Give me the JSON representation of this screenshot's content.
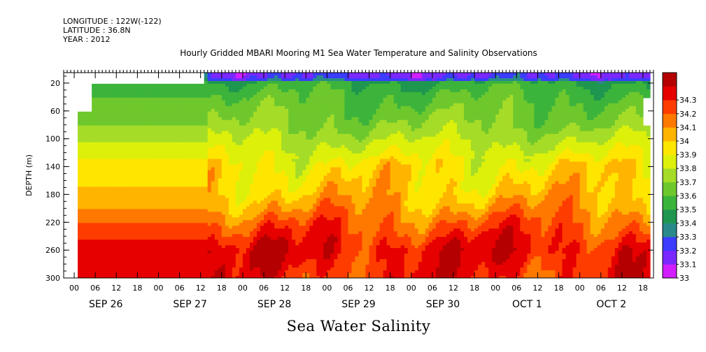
{
  "header": {
    "longitude": "LONGITUDE : 122W(-122)",
    "latitude": "LATITUDE : 36.8N",
    "year": "YEAR : 2012"
  },
  "chart_data": {
    "type": "heatmap",
    "title": "Hourly Gridded MBARI Mooring M1 Sea Water Temperature and Salinity Observations",
    "variable_title": "Sea Water Salinity",
    "ylabel": "DEPTH (m)",
    "xlabel": "",
    "y_axis": {
      "ticks": [
        20,
        60,
        100,
        140,
        180,
        220,
        260,
        300
      ],
      "range": [
        5,
        300
      ],
      "inverted": true
    },
    "x_axis": {
      "hour_ticks": [
        "00",
        "06",
        "12",
        "18",
        "00",
        "06",
        "12",
        "18",
        "00",
        "06",
        "12",
        "18",
        "00",
        "06",
        "12",
        "18",
        "00",
        "06",
        "12",
        "18",
        "00",
        "06",
        "12",
        "18",
        "00",
        "06",
        "12",
        "18"
      ],
      "date_labels": [
        "SEP 26",
        "SEP 27",
        "SEP 28",
        "SEP 29",
        "SEP 30",
        "OCT  1",
        "OCT  2"
      ],
      "range_hours": [
        -3,
        165
      ],
      "data_start_hours": 1,
      "data_end_hours": 164
    },
    "colorbar": {
      "levels": [
        33.0,
        33.1,
        33.2,
        33.3,
        33.4,
        33.5,
        33.6,
        33.7,
        33.8,
        33.9,
        34.0,
        34.1,
        34.2,
        34.3
      ],
      "labels": [
        "33",
        "33.1",
        "33.2",
        "33.3",
        "33.4",
        "33.5",
        "33.6",
        "33.7",
        "33.8",
        "33.9",
        "34",
        "34.1",
        "34.2",
        "34.3"
      ],
      "colors": [
        "#d21eff",
        "#7a28ff",
        "#3c3cff",
        "#2a8a8a",
        "#1e9650",
        "#3cb43c",
        "#6ec82d",
        "#a5dc28",
        "#dcf00a",
        "#ffe600",
        "#ffb400",
        "#ff7800",
        "#ff3c00",
        "#e60000",
        "#b40000"
      ]
    },
    "salinity_profile": [
      {
        "depth": 10,
        "salinity": 33.25
      },
      {
        "depth": 20,
        "salinity": 33.42
      },
      {
        "depth": 40,
        "salinity": 33.5
      },
      {
        "depth": 60,
        "salinity": 33.55
      },
      {
        "depth": 80,
        "salinity": 33.6
      },
      {
        "depth": 100,
        "salinity": 33.68
      },
      {
        "depth": 120,
        "salinity": 33.76
      },
      {
        "depth": 140,
        "salinity": 33.84
      },
      {
        "depth": 160,
        "salinity": 33.88
      },
      {
        "depth": 180,
        "salinity": 33.92
      },
      {
        "depth": 200,
        "salinity": 34.0
      },
      {
        "depth": 220,
        "salinity": 34.1
      },
      {
        "depth": 240,
        "salinity": 34.18
      },
      {
        "depth": 260,
        "salinity": 34.25
      },
      {
        "depth": 280,
        "salinity": 34.22
      },
      {
        "depth": 300,
        "salinity": 34.2
      }
    ]
  }
}
